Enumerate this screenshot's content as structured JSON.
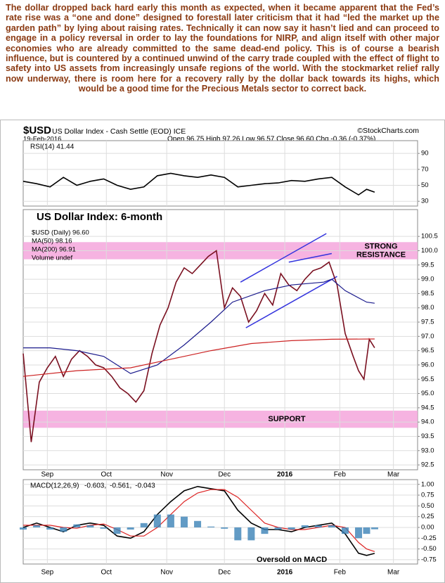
{
  "commentary": "The dollar dropped back hard early this month as expected, when it became apparent that the Fed’s rate rise was a “one and done” designed to forestall later criticism that it had “led the market up the garden path” by lying about raising rates. Technically it can now say it hasn’t lied and can proceed to engage in a policy reversal in order to lay the foundations for NIRP, and align itself with other major economies who are already committed to the same dead-end policy. This is of course a bearish influence, but is countered by a continued unwind of the carry trade coupled with the effect of flight to safety into US assets from increasingly unsafe regions of the world. With the stockmarket relief rally now underway, there is room here for a recovery rally by the dollar back towards its highs, which would be a good time for the Precious Metals sector to correct back.",
  "header": {
    "symbol": "$USD",
    "name": "US Dollar Index - Cash Settle (EOD) ICE",
    "source": "©StockCharts.com",
    "date": "19-Feb-2016",
    "quote": "Open 96.75 High 97.26 Low 96.57 Close 96.60 Chg -0.36 (-0.37%)"
  },
  "chart_data": [
    {
      "type": "line",
      "title": "RSI(14) 41.44",
      "ylim": [
        24,
        106
      ],
      "yticks": [
        90,
        70,
        50,
        30
      ],
      "grid": true,
      "series": [
        {
          "color": "#000000",
          "x": [
            0,
            5,
            10,
            15,
            20,
            25,
            30,
            35,
            40,
            45,
            50,
            55,
            60,
            65,
            70,
            75,
            80,
            85,
            90,
            95,
            100,
            105,
            110,
            115,
            120,
            125,
            128,
            131
          ],
          "values": [
            55,
            52,
            48,
            60,
            50,
            55,
            58,
            50,
            45,
            48,
            62,
            65,
            62,
            60,
            63,
            60,
            48,
            50,
            52,
            53,
            56,
            55,
            58,
            60,
            48,
            38,
            45,
            41.44
          ]
        }
      ]
    },
    {
      "type": "line",
      "annotation": "US Dollar Index: 6-month",
      "xlim": [
        0,
        147
      ],
      "xticks": [
        {
          "value": 9,
          "label": "Sep"
        },
        {
          "value": 31,
          "label": "Oct"
        },
        {
          "value": 53.5,
          "label": "Nov"
        },
        {
          "value": 75,
          "label": "Dec"
        },
        {
          "value": 97.5,
          "label": "2016"
        },
        {
          "value": 118,
          "label": "Feb"
        },
        {
          "value": 138,
          "label": "Mar"
        }
      ],
      "ylim": [
        92.33,
        101.44
      ],
      "yticks": [
        92.5,
        {
          "value": 93,
          "label": "93.0"
        },
        93.5,
        {
          "value": 94,
          "label": "94.0"
        },
        94.5,
        {
          "value": 95,
          "label": "95.0"
        },
        95.5,
        {
          "value": 96,
          "label": "96.0"
        },
        96.5,
        {
          "value": 97,
          "label": "97.0"
        },
        97.5,
        {
          "value": 98,
          "label": "98.0"
        },
        98.5,
        {
          "value": 99,
          "label": "99.0"
        },
        99.5,
        {
          "value": 100,
          "label": "100.0"
        },
        100.5
      ],
      "grid": true,
      "volume_label": "Volume undef",
      "bands": [
        {
          "label": [
            "STRONG",
            "RESISTANCE"
          ],
          "range": [
            99.7,
            100.3
          ],
          "color": "#f4a6dc"
        },
        {
          "label": [
            "SUPPORT"
          ],
          "range": [
            93.8,
            94.4
          ],
          "color": "#f4a6dc"
        }
      ],
      "trendlines": [
        {
          "x": [
            81,
            113
          ],
          "values": [
            98.9,
            100.6
          ]
        },
        {
          "x": [
            83,
            117
          ],
          "values": [
            97.3,
            99.1
          ]
        },
        {
          "x": [
            99,
            115
          ],
          "values": [
            99.6,
            99.9
          ]
        }
      ],
      "series": [
        {
          "name": "$USD (Daily) 96.60",
          "color": "#7a1020",
          "x": [
            0,
            3,
            6,
            9,
            12,
            15,
            18,
            21,
            24,
            27,
            30,
            33,
            36,
            39,
            42,
            45,
            48,
            51,
            54,
            57,
            60,
            63,
            66,
            69,
            72,
            75,
            78,
            81,
            84,
            87,
            90,
            93,
            96,
            99,
            102,
            105,
            108,
            111,
            114,
            117,
            120,
            123,
            125,
            127,
            129,
            131
          ],
          "values": [
            96.4,
            93.3,
            95.4,
            95.9,
            96.3,
            95.6,
            96.2,
            96.5,
            96.3,
            96.0,
            95.9,
            95.6,
            95.2,
            95.0,
            94.7,
            95.1,
            96.4,
            97.4,
            98.0,
            98.9,
            99.4,
            99.2,
            99.5,
            99.8,
            100.0,
            98.0,
            98.7,
            98.4,
            97.5,
            97.9,
            98.5,
            98.1,
            99.2,
            98.8,
            98.6,
            99.0,
            99.3,
            99.4,
            99.6,
            98.8,
            97.1,
            96.3,
            95.8,
            95.5,
            96.9,
            96.6
          ]
        },
        {
          "name": "MA(50) 98.16",
          "color": "#1a1a8c",
          "x": [
            0,
            10,
            20,
            30,
            40,
            50,
            60,
            70,
            78,
            90,
            100,
            112,
            115,
            120,
            128,
            131
          ],
          "values": [
            96.6,
            96.6,
            96.5,
            96.3,
            95.7,
            96.0,
            96.7,
            97.5,
            98.2,
            98.6,
            98.8,
            98.9,
            99.0,
            98.6,
            98.2,
            98.16
          ]
        },
        {
          "name": "MA(200) 96.91",
          "color": "#cc2222",
          "x": [
            0,
            20,
            40,
            55,
            70,
            85,
            100,
            115,
            131
          ],
          "values": [
            95.6,
            95.8,
            95.9,
            96.2,
            96.5,
            96.75,
            96.85,
            96.9,
            96.91
          ]
        }
      ]
    },
    {
      "type": "line",
      "annotation": "Oversold on MACD",
      "title": "MACD(12,26,9)",
      "ylim": [
        -0.85,
        1.11
      ],
      "yticks": [
        {
          "value": 1,
          "label": "1.00"
        },
        0.75,
        {
          "value": 0.5,
          "label": "0.50"
        },
        0.25,
        {
          "value": 0,
          "label": "0.00"
        },
        -0.25,
        {
          "value": -0.5,
          "label": "-0.50"
        },
        -0.75
      ],
      "grid": true,
      "series": [
        {
          "name": "-0.603,",
          "color": "#000000",
          "x": [
            0,
            5,
            10,
            15,
            20,
            25,
            30,
            35,
            40,
            45,
            50,
            55,
            60,
            65,
            70,
            75,
            80,
            85,
            90,
            95,
            100,
            105,
            110,
            115,
            120,
            125,
            128,
            131
          ],
          "values": [
            0.0,
            0.1,
            0.0,
            -0.1,
            0.05,
            0.1,
            0.05,
            -0.2,
            -0.25,
            -0.1,
            0.3,
            0.6,
            0.85,
            0.95,
            0.9,
            0.85,
            0.4,
            0.1,
            -0.05,
            -0.05,
            -0.1,
            0.0,
            0.05,
            0.1,
            -0.15,
            -0.6,
            -0.65,
            -0.603
          ]
        },
        {
          "name": "-0.561,",
          "color": "#dd2222",
          "x": [
            0,
            5,
            10,
            15,
            20,
            25,
            30,
            35,
            40,
            45,
            50,
            55,
            60,
            65,
            70,
            75,
            80,
            85,
            90,
            95,
            100,
            105,
            110,
            115,
            120,
            125,
            128,
            131
          ],
          "values": [
            0.05,
            0.05,
            0.05,
            0.0,
            -0.02,
            0.05,
            0.08,
            -0.05,
            -0.2,
            -0.2,
            0.0,
            0.3,
            0.6,
            0.8,
            0.88,
            0.88,
            0.7,
            0.4,
            0.1,
            0.0,
            -0.05,
            -0.05,
            0.0,
            0.05,
            0.0,
            -0.35,
            -0.5,
            -0.561
          ]
        },
        {
          "name": "-0.043",
          "color": "#3b82b6",
          "bars": true,
          "x": [
            0,
            5,
            10,
            15,
            20,
            25,
            30,
            35,
            40,
            45,
            50,
            55,
            60,
            65,
            70,
            75,
            80,
            85,
            90,
            95,
            100,
            105,
            110,
            115,
            120,
            125,
            128,
            131
          ],
          "values": [
            -0.05,
            0.05,
            -0.05,
            -0.1,
            0.07,
            0.05,
            -0.03,
            -0.15,
            -0.05,
            0.1,
            0.3,
            0.3,
            0.25,
            0.15,
            0.02,
            -0.03,
            -0.3,
            -0.3,
            -0.15,
            -0.05,
            -0.05,
            0.05,
            0.05,
            0.05,
            -0.15,
            -0.25,
            -0.15,
            -0.043
          ]
        }
      ]
    }
  ]
}
